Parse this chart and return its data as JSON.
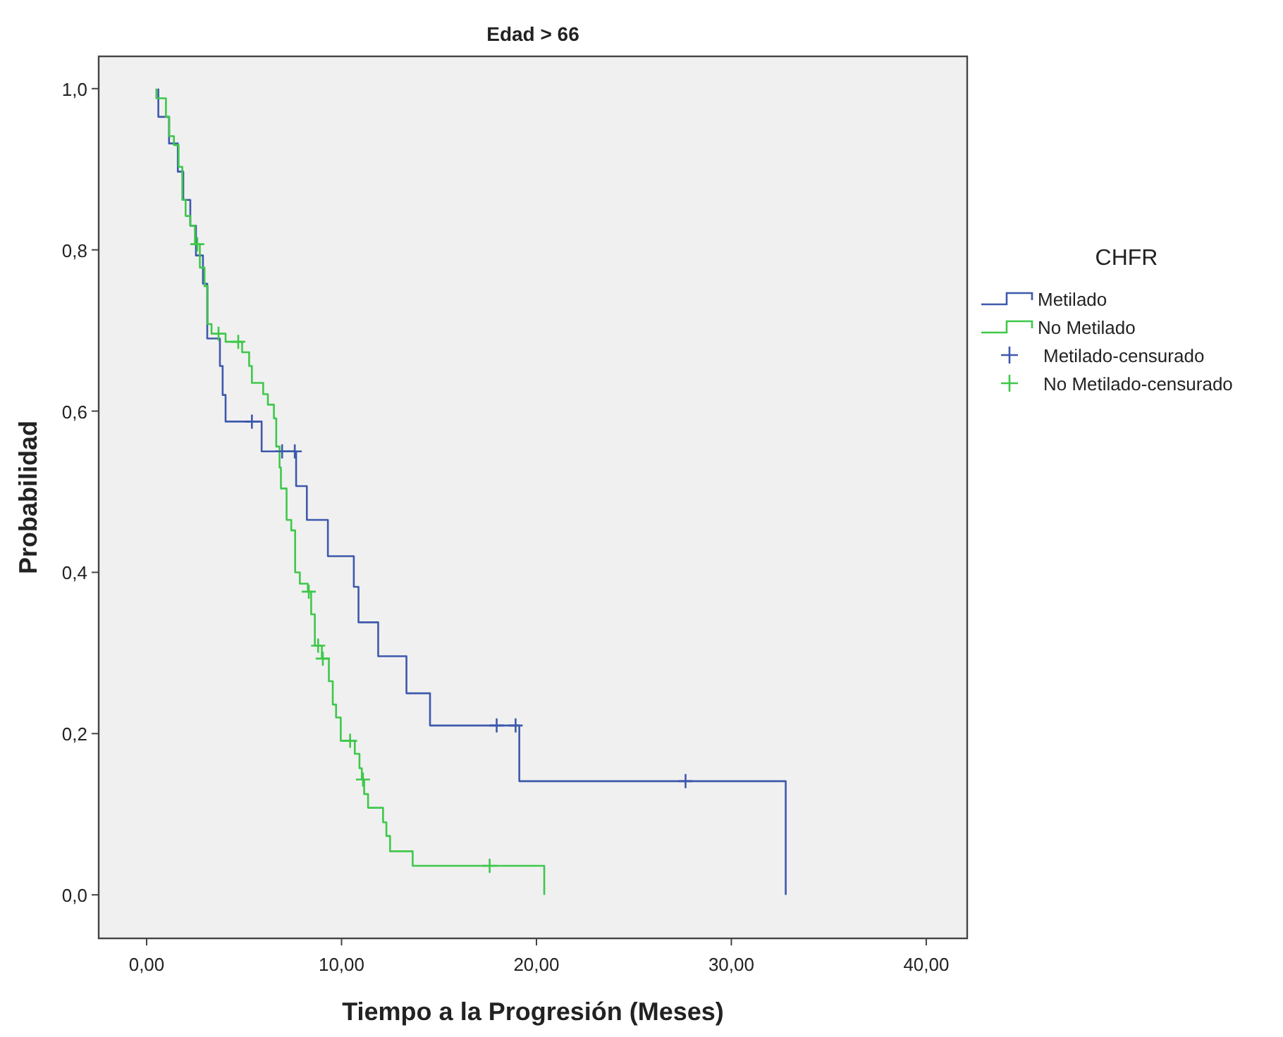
{
  "chart_data": {
    "type": "step",
    "title": "Edad > 66",
    "xlabel": "Tiempo a la Progresión (Meses)",
    "ylabel": "Probabilidad",
    "legend_title": "CHFR",
    "legend": "right",
    "xlim": [
      -2.46,
      42.1
    ],
    "ylim": [
      -0.054,
      1.04
    ],
    "xticks": [
      {
        "value": 0,
        "label": "0,00"
      },
      {
        "value": 10,
        "label": "10,00"
      },
      {
        "value": 20,
        "label": "20,00"
      },
      {
        "value": 30,
        "label": "30,00"
      },
      {
        "value": 40,
        "label": "40,00"
      }
    ],
    "yticks": [
      {
        "value": 0,
        "label": "0,0"
      },
      {
        "value": 0.2,
        "label": "0,2"
      },
      {
        "value": 0.4,
        "label": "0,4"
      },
      {
        "value": 0.6,
        "label": "0,6"
      },
      {
        "value": 0.8,
        "label": "0,8"
      },
      {
        "value": 1,
        "label": "1,0"
      }
    ],
    "series": [
      {
        "name": "Metilado",
        "color": "#3e58ac",
        "x": [
          0.6,
          0.6,
          1.15,
          1.6,
          1.88,
          2.24,
          2.53,
          2.89,
          3.11,
          3.76,
          3.9,
          4.05,
          5.9,
          7.67,
          8.22,
          9.3,
          10.63,
          10.87,
          11.88,
          13.33,
          14.54,
          19.12,
          32.79
        ],
        "values": [
          1.0,
          0.965,
          0.932,
          0.897,
          0.862,
          0.83,
          0.793,
          0.758,
          0.69,
          0.656,
          0.62,
          0.587,
          0.55,
          0.507,
          0.465,
          0.42,
          0.382,
          0.338,
          0.296,
          0.25,
          0.21,
          0.141,
          0
        ]
      },
      {
        "name": "No Metilado",
        "color": "#3ec84a",
        "x": [
          0.5,
          0.5,
          0.99,
          1.16,
          1.4,
          1.64,
          1.83,
          2.0,
          2.24,
          2.48,
          2.73,
          2.97,
          3.13,
          3.33,
          4.05,
          4.9,
          5.26,
          5.4,
          5.98,
          6.22,
          6.53,
          6.65,
          6.82,
          6.89,
          7.18,
          7.42,
          7.62,
          7.86,
          8.27,
          8.44,
          8.63,
          8.99,
          9.35,
          9.55,
          9.72,
          9.96,
          10.68,
          10.92,
          11.04,
          11.16,
          11.36,
          12.13,
          12.3,
          12.49,
          13.65,
          20.4
        ],
        "values": [
          1.0,
          0.988,
          0.965,
          0.941,
          0.93,
          0.903,
          0.862,
          0.842,
          0.83,
          0.807,
          0.778,
          0.755,
          0.708,
          0.696,
          0.686,
          0.673,
          0.656,
          0.635,
          0.621,
          0.608,
          0.591,
          0.556,
          0.53,
          0.504,
          0.465,
          0.452,
          0.4,
          0.386,
          0.376,
          0.348,
          0.309,
          0.293,
          0.265,
          0.236,
          0.22,
          0.191,
          0.175,
          0.157,
          0.143,
          0.125,
          0.108,
          0.09,
          0.073,
          0.054,
          0.036,
          0
        ]
      },
      {
        "name": "Metilado-censurado",
        "type": "scatter",
        "marker": "cross",
        "color": "#3e58ac",
        "x": [
          5.4,
          6.95,
          7.6,
          17.96,
          18.93,
          27.65
        ],
        "values": [
          0.587,
          0.55,
          0.55,
          0.21,
          0.21,
          0.141
        ]
      },
      {
        "name": "No Metilado-censurado",
        "type": "scatter",
        "marker": "cross",
        "color": "#3ec84a",
        "x": [
          2.6,
          3.69,
          4.7,
          8.32,
          8.8,
          9.04,
          10.44,
          11.1,
          17.6
        ],
        "values": [
          0.807,
          0.696,
          0.686,
          0.376,
          0.309,
          0.293,
          0.191,
          0.143,
          0.036
        ]
      }
    ]
  }
}
